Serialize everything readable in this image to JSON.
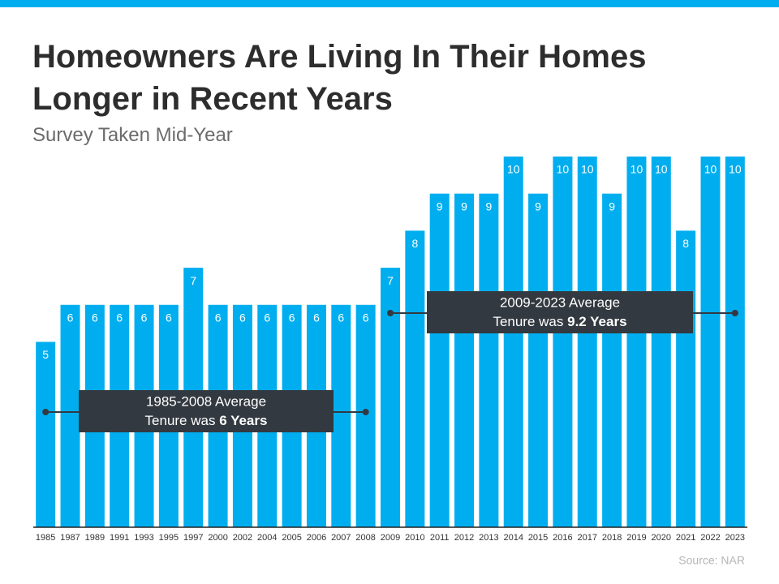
{
  "chart_data": {
    "type": "bar",
    "title": "Homeowners Are Living In Their Homes Longer in Recent Years",
    "subtitle": "Survey Taken Mid-Year",
    "source": "Source: NAR",
    "categories": [
      "1985",
      "1987",
      "1989",
      "1991",
      "1993",
      "1995",
      "1997",
      "2000",
      "2002",
      "2004",
      "2005",
      "2006",
      "2007",
      "2008",
      "2009",
      "2010",
      "2011",
      "2012",
      "2013",
      "2014",
      "2015",
      "2016",
      "2017",
      "2018",
      "2019",
      "2020",
      "2021",
      "2022",
      "2023"
    ],
    "values": [
      5,
      6,
      6,
      6,
      6,
      6,
      7,
      6,
      6,
      6,
      6,
      6,
      6,
      6,
      7,
      8,
      9,
      9,
      9,
      10,
      9,
      10,
      10,
      9,
      10,
      10,
      8,
      10,
      10
    ],
    "color": "#00aeef",
    "ylim": [
      0,
      10
    ],
    "annotations": [
      {
        "line1": "1985-2008 Average",
        "line2": "Tenure was",
        "emphasis": "6 Years"
      },
      {
        "line1": "2009-2023 Average",
        "line2": "Tenure was",
        "emphasis": "9.2 Years"
      }
    ]
  }
}
